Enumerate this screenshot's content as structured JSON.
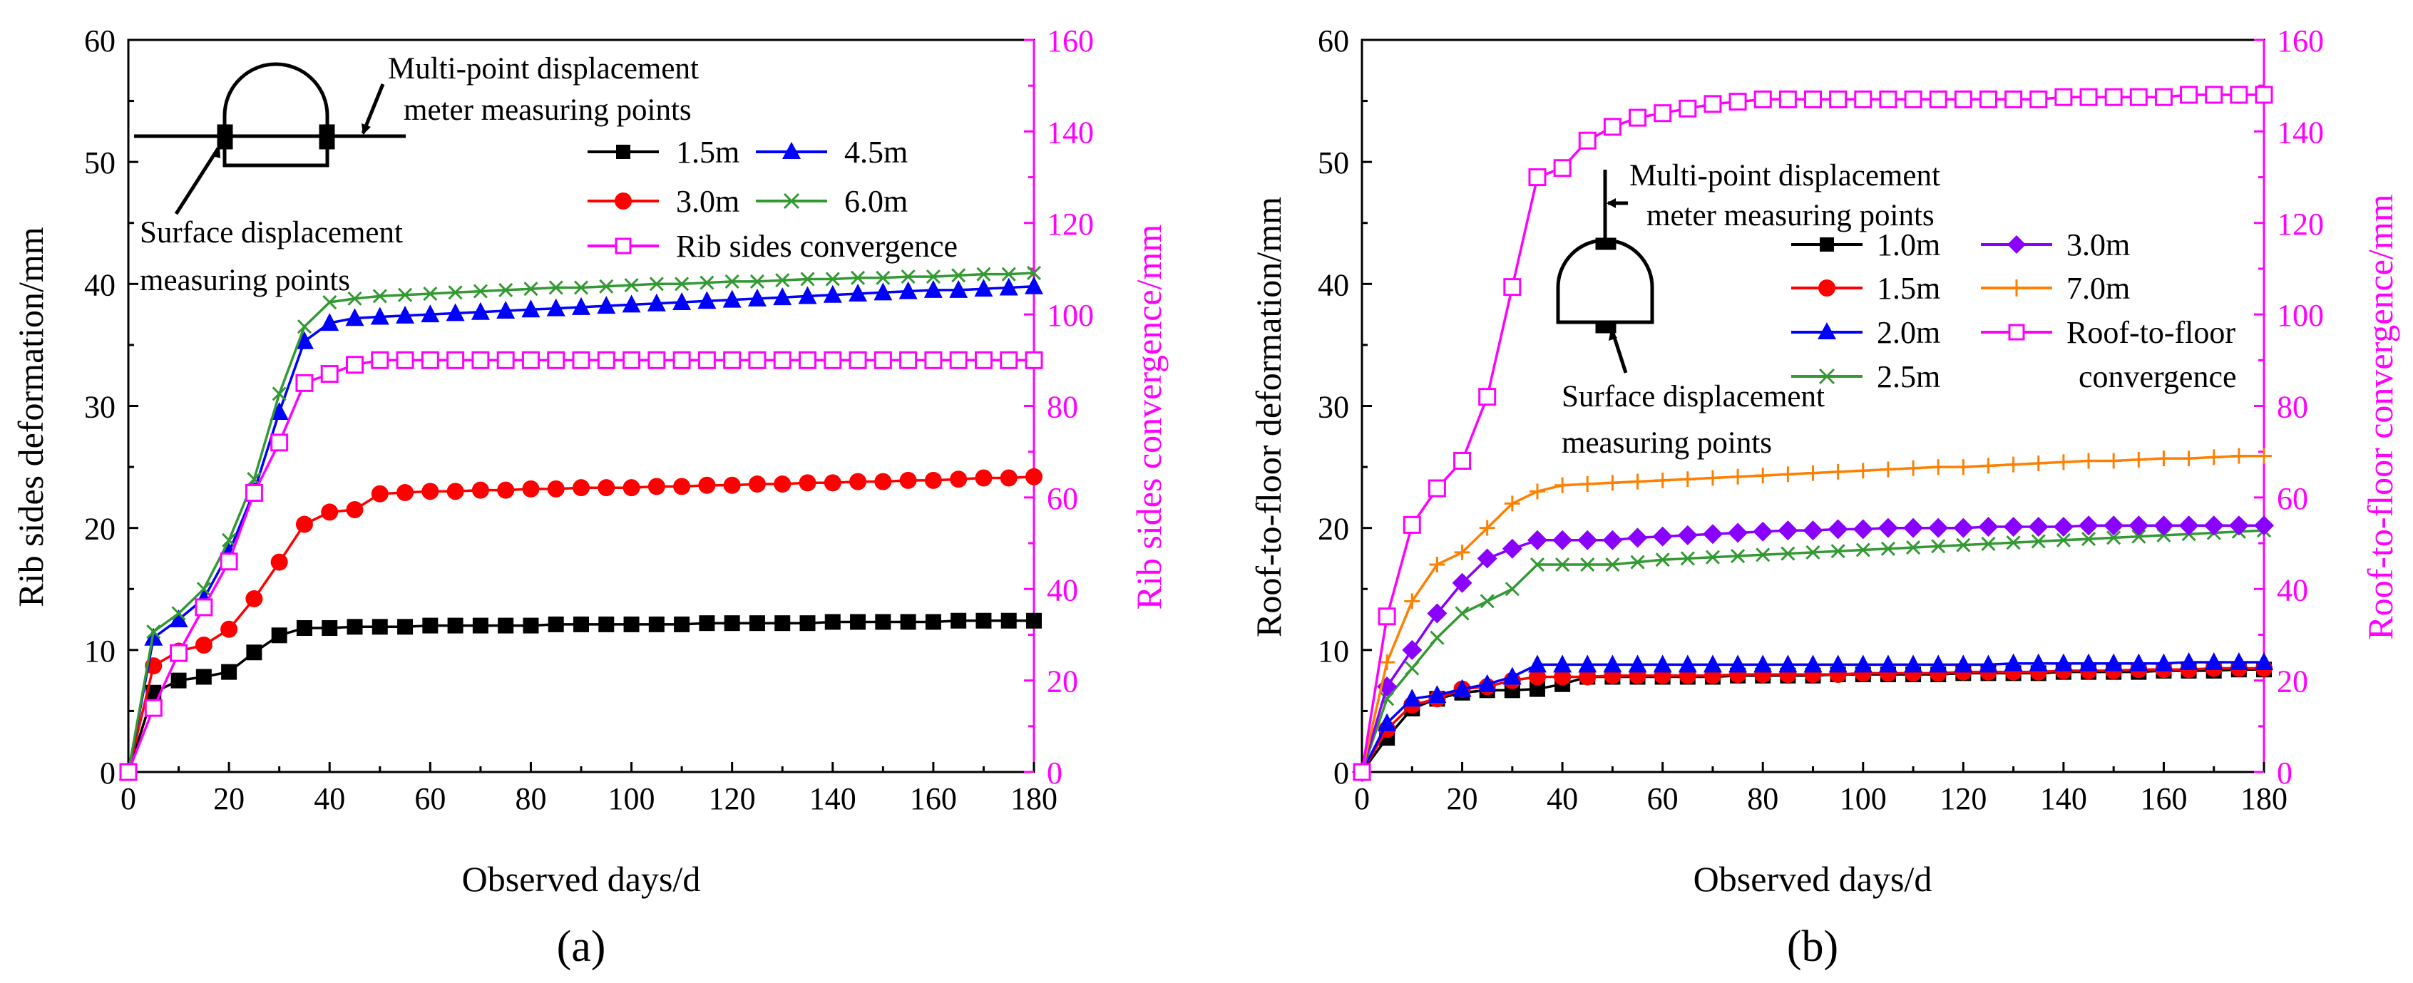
{
  "colors": {
    "black": "#000000",
    "red": "#ff0000",
    "blue": "#0000ff",
    "green": "#339933",
    "purple": "#8a00ff",
    "orange": "#ff8000",
    "magenta": "#ff00ff"
  },
  "chart_data": [
    {
      "type": "line",
      "panel_label": "(a)",
      "xlabel": "Observed days/d",
      "ylabel": "Rib sides deformation/mm",
      "y2label": "Rib sides convergence/mm",
      "xlim": [
        0,
        180
      ],
      "ylim": [
        0,
        60
      ],
      "y2lim": [
        0,
        160
      ],
      "xticks": [
        0,
        20,
        40,
        60,
        80,
        100,
        120,
        140,
        160,
        180
      ],
      "yticks": [
        0,
        10,
        20,
        30,
        40,
        50,
        60
      ],
      "y2ticks": [
        0,
        20,
        40,
        60,
        80,
        100,
        120,
        140,
        160
      ],
      "annotations": {
        "top_label_1": "Multi-point displacement",
        "top_label_2": "meter measuring points",
        "bottom_label_1": "Surface displacement",
        "bottom_label_2": "measuring points"
      },
      "legend": [
        "1.5m",
        "4.5m",
        "3.0m",
        "6.0m",
        "Rib sides convergence"
      ],
      "series": [
        {
          "name": "1.5m",
          "color": "black",
          "marker": "square-filled",
          "axis": "left",
          "x": [
            0,
            5,
            10,
            15,
            20,
            25,
            30,
            35,
            40,
            45,
            50,
            55,
            60,
            65,
            70,
            75,
            80,
            85,
            90,
            95,
            100,
            105,
            110,
            115,
            120,
            125,
            130,
            135,
            140,
            145,
            150,
            155,
            160,
            165,
            170,
            175,
            180
          ],
          "values": [
            0,
            6.5,
            7.5,
            7.8,
            8.2,
            9.8,
            11.2,
            11.8,
            11.8,
            11.9,
            11.9,
            11.9,
            12.0,
            12.0,
            12.0,
            12.0,
            12.0,
            12.1,
            12.1,
            12.1,
            12.1,
            12.1,
            12.1,
            12.2,
            12.2,
            12.2,
            12.2,
            12.2,
            12.3,
            12.3,
            12.3,
            12.3,
            12.3,
            12.4,
            12.4,
            12.4,
            12.4
          ]
        },
        {
          "name": "3.0m",
          "color": "red",
          "marker": "circle-filled",
          "axis": "left",
          "x": [
            0,
            5,
            10,
            15,
            20,
            25,
            30,
            35,
            40,
            45,
            50,
            55,
            60,
            65,
            70,
            75,
            80,
            85,
            90,
            95,
            100,
            105,
            110,
            115,
            120,
            125,
            130,
            135,
            140,
            145,
            150,
            155,
            160,
            165,
            170,
            175,
            180
          ],
          "values": [
            0,
            8.7,
            9.9,
            10.4,
            11.7,
            14.2,
            17.2,
            20.3,
            21.3,
            21.5,
            22.8,
            22.9,
            23.0,
            23.0,
            23.1,
            23.1,
            23.2,
            23.2,
            23.3,
            23.3,
            23.3,
            23.4,
            23.4,
            23.5,
            23.5,
            23.6,
            23.6,
            23.7,
            23.7,
            23.8,
            23.8,
            23.9,
            23.9,
            24.0,
            24.1,
            24.1,
            24.2
          ]
        },
        {
          "name": "4.5m",
          "color": "blue",
          "marker": "triangle-filled",
          "axis": "left",
          "x": [
            0,
            5,
            10,
            15,
            20,
            25,
            30,
            35,
            40,
            45,
            50,
            55,
            60,
            65,
            70,
            75,
            80,
            85,
            90,
            95,
            100,
            105,
            110,
            115,
            120,
            125,
            130,
            135,
            140,
            145,
            150,
            155,
            160,
            165,
            170,
            175,
            180
          ],
          "values": [
            0,
            11.0,
            12.5,
            14.2,
            18.0,
            23.0,
            29.5,
            35.3,
            36.8,
            37.2,
            37.3,
            37.4,
            37.5,
            37.6,
            37.7,
            37.8,
            37.9,
            38.0,
            38.1,
            38.2,
            38.3,
            38.4,
            38.5,
            38.6,
            38.7,
            38.8,
            38.9,
            39.0,
            39.1,
            39.2,
            39.3,
            39.4,
            39.5,
            39.5,
            39.6,
            39.7,
            39.8
          ]
        },
        {
          "name": "6.0m",
          "color": "green",
          "marker": "x",
          "axis": "left",
          "x": [
            0,
            5,
            10,
            15,
            20,
            25,
            30,
            35,
            40,
            45,
            50,
            55,
            60,
            65,
            70,
            75,
            80,
            85,
            90,
            95,
            100,
            105,
            110,
            115,
            120,
            125,
            130,
            135,
            140,
            145,
            150,
            155,
            160,
            165,
            170,
            175,
            180
          ],
          "values": [
            0,
            11.5,
            13.0,
            15.0,
            19.0,
            24.0,
            31.0,
            36.5,
            38.5,
            38.8,
            39.0,
            39.1,
            39.2,
            39.3,
            39.4,
            39.5,
            39.6,
            39.7,
            39.7,
            39.8,
            39.9,
            40.0,
            40.0,
            40.1,
            40.2,
            40.2,
            40.3,
            40.4,
            40.4,
            40.5,
            40.5,
            40.6,
            40.6,
            40.7,
            40.8,
            40.8,
            40.9
          ]
        },
        {
          "name": "Rib sides convergence",
          "color": "magenta",
          "marker": "square-open",
          "axis": "right",
          "x": [
            0,
            5,
            10,
            15,
            20,
            25,
            30,
            35,
            40,
            45,
            50,
            55,
            60,
            65,
            70,
            75,
            80,
            85,
            90,
            95,
            100,
            105,
            110,
            115,
            120,
            125,
            130,
            135,
            140,
            145,
            150,
            155,
            160,
            165,
            170,
            175,
            180
          ],
          "values": [
            0,
            14,
            26,
            36,
            46,
            61,
            72,
            85,
            87,
            89,
            90,
            90,
            90,
            90,
            90,
            90,
            90,
            90,
            90,
            90,
            90,
            90,
            90,
            90,
            90,
            90,
            90,
            90,
            90,
            90,
            90,
            90,
            90,
            90,
            90,
            90,
            90
          ]
        }
      ]
    },
    {
      "type": "line",
      "panel_label": "(b)",
      "xlabel": "Observed days/d",
      "ylabel": "Roof-to-floor deformation/mm",
      "y2label": "Roof-to-floor convergence/mm",
      "xlim": [
        0,
        180
      ],
      "ylim": [
        0,
        60
      ],
      "y2lim": [
        0,
        160
      ],
      "xticks": [
        0,
        20,
        40,
        60,
        80,
        100,
        120,
        140,
        160,
        180
      ],
      "yticks": [
        0,
        10,
        20,
        30,
        40,
        50,
        60
      ],
      "y2ticks": [
        0,
        20,
        40,
        60,
        80,
        100,
        120,
        140,
        160
      ],
      "annotations": {
        "top_label_1": "Multi-point displacement",
        "top_label_2": "meter measuring points",
        "bottom_label_1": "Surface displacement",
        "bottom_label_2": "measuring points"
      },
      "legend": [
        "1.0m",
        "3.0m",
        "1.5m",
        "7.0m",
        "2.0m",
        "Roof-to-floor",
        "2.5m",
        "convergence"
      ],
      "series": [
        {
          "name": "1.0m",
          "color": "black",
          "marker": "square-filled",
          "axis": "left",
          "x": [
            0,
            5,
            10,
            15,
            20,
            25,
            30,
            35,
            40,
            45,
            50,
            55,
            60,
            65,
            70,
            75,
            80,
            85,
            90,
            95,
            100,
            105,
            110,
            115,
            120,
            125,
            130,
            135,
            140,
            145,
            150,
            155,
            160,
            165,
            170,
            175,
            180
          ],
          "values": [
            0,
            2.8,
            5.2,
            6.0,
            6.5,
            6.7,
            6.7,
            6.8,
            7.2,
            7.8,
            7.8,
            7.8,
            7.8,
            7.8,
            7.8,
            7.9,
            7.9,
            7.9,
            7.9,
            8.0,
            8.0,
            8.0,
            8.0,
            8.0,
            8.1,
            8.1,
            8.1,
            8.1,
            8.2,
            8.2,
            8.2,
            8.2,
            8.3,
            8.3,
            8.3,
            8.4,
            8.4
          ]
        },
        {
          "name": "1.5m",
          "color": "red",
          "marker": "circle-filled",
          "axis": "left",
          "x": [
            0,
            5,
            10,
            15,
            20,
            25,
            30,
            35,
            40,
            45,
            50,
            55,
            60,
            65,
            70,
            75,
            80,
            85,
            90,
            95,
            100,
            105,
            110,
            115,
            120,
            125,
            130,
            135,
            140,
            145,
            150,
            155,
            160,
            165,
            170,
            175,
            180
          ],
          "values": [
            0,
            3.5,
            5.5,
            6.0,
            6.8,
            7.0,
            7.5,
            7.8,
            7.8,
            7.8,
            7.9,
            7.9,
            7.9,
            7.9,
            7.9,
            8.0,
            8.0,
            8.0,
            8.0,
            8.0,
            8.1,
            8.1,
            8.1,
            8.1,
            8.2,
            8.2,
            8.2,
            8.2,
            8.3,
            8.3,
            8.3,
            8.4,
            8.4,
            8.4,
            8.5,
            8.5,
            8.5
          ]
        },
        {
          "name": "2.0m",
          "color": "blue",
          "marker": "triangle-filled",
          "axis": "left",
          "x": [
            0,
            5,
            10,
            15,
            20,
            25,
            30,
            35,
            40,
            45,
            50,
            55,
            60,
            65,
            70,
            75,
            80,
            85,
            90,
            95,
            100,
            105,
            110,
            115,
            120,
            125,
            130,
            135,
            140,
            145,
            150,
            155,
            160,
            165,
            170,
            175,
            180
          ],
          "values": [
            0,
            4.0,
            6.0,
            6.3,
            6.8,
            7.2,
            7.8,
            8.8,
            8.8,
            8.8,
            8.8,
            8.8,
            8.8,
            8.8,
            8.8,
            8.8,
            8.8,
            8.8,
            8.8,
            8.8,
            8.8,
            8.8,
            8.8,
            8.8,
            8.8,
            8.8,
            8.9,
            8.9,
            8.9,
            8.9,
            8.9,
            8.9,
            8.9,
            9.0,
            9.0,
            9.0,
            9.0
          ]
        },
        {
          "name": "2.5m",
          "color": "green",
          "marker": "x",
          "axis": "left",
          "x": [
            0,
            5,
            10,
            15,
            20,
            25,
            30,
            35,
            40,
            45,
            50,
            55,
            60,
            65,
            70,
            75,
            80,
            85,
            90,
            95,
            100,
            105,
            110,
            115,
            120,
            125,
            130,
            135,
            140,
            145,
            150,
            155,
            160,
            165,
            170,
            175,
            180
          ],
          "values": [
            0,
            6.0,
            8.5,
            11.0,
            13.0,
            14.0,
            15.0,
            17.0,
            17.0,
            17.0,
            17.0,
            17.2,
            17.4,
            17.5,
            17.6,
            17.7,
            17.8,
            17.9,
            18.0,
            18.1,
            18.2,
            18.3,
            18.4,
            18.5,
            18.6,
            18.7,
            18.8,
            18.9,
            19.0,
            19.1,
            19.2,
            19.3,
            19.4,
            19.5,
            19.6,
            19.7,
            19.8
          ]
        },
        {
          "name": "3.0m",
          "color": "purple",
          "marker": "diamond-filled",
          "axis": "left",
          "x": [
            0,
            5,
            10,
            15,
            20,
            25,
            30,
            35,
            40,
            45,
            50,
            55,
            60,
            65,
            70,
            75,
            80,
            85,
            90,
            95,
            100,
            105,
            110,
            115,
            120,
            125,
            130,
            135,
            140,
            145,
            150,
            155,
            160,
            165,
            170,
            175,
            180
          ],
          "values": [
            0,
            7.0,
            10.0,
            13.0,
            15.5,
            17.5,
            18.3,
            19.0,
            19.0,
            19.0,
            19.0,
            19.2,
            19.3,
            19.4,
            19.5,
            19.6,
            19.7,
            19.8,
            19.8,
            19.9,
            19.9,
            20.0,
            20.0,
            20.0,
            20.0,
            20.1,
            20.1,
            20.1,
            20.1,
            20.2,
            20.2,
            20.2,
            20.2,
            20.2,
            20.2,
            20.2,
            20.2
          ]
        },
        {
          "name": "7.0m",
          "color": "orange",
          "marker": "plus",
          "axis": "left",
          "x": [
            0,
            5,
            10,
            15,
            20,
            25,
            30,
            35,
            40,
            45,
            50,
            55,
            60,
            65,
            70,
            75,
            80,
            85,
            90,
            95,
            100,
            105,
            110,
            115,
            120,
            125,
            130,
            135,
            140,
            145,
            150,
            155,
            160,
            165,
            170,
            175,
            180
          ],
          "values": [
            0,
            9.0,
            14.0,
            17.0,
            18.0,
            20.0,
            22.0,
            23.0,
            23.5,
            23.6,
            23.7,
            23.8,
            23.9,
            24.0,
            24.1,
            24.2,
            24.3,
            24.4,
            24.5,
            24.6,
            24.7,
            24.8,
            24.9,
            25.0,
            25.0,
            25.1,
            25.2,
            25.3,
            25.4,
            25.5,
            25.5,
            25.6,
            25.7,
            25.7,
            25.8,
            25.9,
            25.9
          ]
        },
        {
          "name": "Roof-to-floor convergence",
          "color": "magenta",
          "marker": "square-open",
          "axis": "right",
          "x": [
            0,
            5,
            10,
            15,
            20,
            25,
            30,
            35,
            40,
            45,
            50,
            55,
            60,
            65,
            70,
            75,
            80,
            85,
            90,
            95,
            100,
            105,
            110,
            115,
            120,
            125,
            130,
            135,
            140,
            145,
            150,
            155,
            160,
            165,
            170,
            175,
            180
          ],
          "values": [
            0,
            34,
            54,
            62,
            68,
            82,
            106,
            130,
            132,
            138,
            141,
            143,
            144,
            145,
            146,
            146.5,
            147,
            147,
            147,
            147,
            147,
            147,
            147,
            147,
            147,
            147,
            147,
            147,
            147.5,
            147.5,
            147.5,
            147.5,
            147.5,
            148,
            148,
            148,
            148
          ]
        }
      ]
    }
  ]
}
